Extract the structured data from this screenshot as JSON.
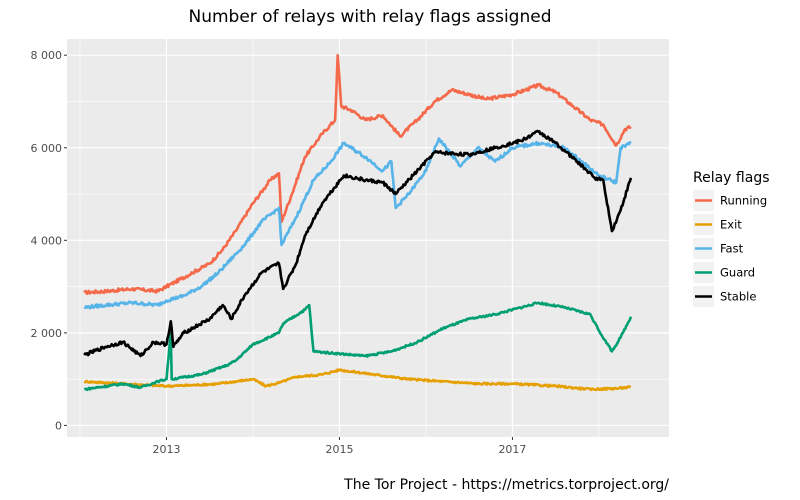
{
  "chart_data": {
    "type": "line",
    "title": "Number of relays with relay flags assigned",
    "xlabel": "",
    "ylabel": "",
    "caption": "The Tor Project - https://metrics.torproject.org/",
    "xlim": [
      2011.85,
      2018.81
    ],
    "ylim": [
      -250,
      8350
    ],
    "x_ticks": [
      {
        "value": 2013,
        "label": "2013"
      },
      {
        "value": 2015,
        "label": "2015"
      },
      {
        "value": 2017,
        "label": "2017"
      }
    ],
    "x_minor": [
      2012,
      2014,
      2016,
      2018
    ],
    "y_ticks": [
      {
        "value": 0,
        "label": "0"
      },
      {
        "value": 2000,
        "label": "2 000"
      },
      {
        "value": 4000,
        "label": "4 000"
      },
      {
        "value": 6000,
        "label": "6 000"
      },
      {
        "value": 8000,
        "label": "8 000"
      }
    ],
    "y_minor": [
      1000,
      3000,
      5000,
      7000
    ],
    "grid": true,
    "legend": {
      "title": "Relay flags",
      "position": "right"
    },
    "series": [
      {
        "name": "Running",
        "color": "#f4694a",
        "points": [
          [
            2012.05,
            2870
          ],
          [
            2012.3,
            2900
          ],
          [
            2012.6,
            2950
          ],
          [
            2012.9,
            2900
          ],
          [
            2013.0,
            3000
          ],
          [
            2013.1,
            3100
          ],
          [
            2013.3,
            3300
          ],
          [
            2013.5,
            3500
          ],
          [
            2013.65,
            3800
          ],
          [
            2013.8,
            4200
          ],
          [
            2014.0,
            4800
          ],
          [
            2014.2,
            5300
          ],
          [
            2014.3,
            5450
          ],
          [
            2014.33,
            4400
          ],
          [
            2014.45,
            5000
          ],
          [
            2014.6,
            5800
          ],
          [
            2014.8,
            6300
          ],
          [
            2014.95,
            6600
          ],
          [
            2014.98,
            8000
          ],
          [
            2015.02,
            6900
          ],
          [
            2015.15,
            6800
          ],
          [
            2015.3,
            6600
          ],
          [
            2015.5,
            6700
          ],
          [
            2015.7,
            6250
          ],
          [
            2015.9,
            6600
          ],
          [
            2016.1,
            7000
          ],
          [
            2016.3,
            7250
          ],
          [
            2016.5,
            7150
          ],
          [
            2016.7,
            7050
          ],
          [
            2017.0,
            7150
          ],
          [
            2017.3,
            7350
          ],
          [
            2017.5,
            7200
          ],
          [
            2017.7,
            6900
          ],
          [
            2017.9,
            6600
          ],
          [
            2018.05,
            6500
          ],
          [
            2018.2,
            6050
          ],
          [
            2018.3,
            6400
          ],
          [
            2018.37,
            6450
          ]
        ]
      },
      {
        "name": "Exit",
        "color": "#e69f00",
        "points": [
          [
            2012.05,
            950
          ],
          [
            2012.5,
            900
          ],
          [
            2013.0,
            850
          ],
          [
            2013.3,
            870
          ],
          [
            2013.6,
            900
          ],
          [
            2014.0,
            1000
          ],
          [
            2014.15,
            850
          ],
          [
            2014.3,
            920
          ],
          [
            2014.5,
            1050
          ],
          [
            2014.8,
            1100
          ],
          [
            2015.0,
            1200
          ],
          [
            2015.2,
            1150
          ],
          [
            2015.4,
            1100
          ],
          [
            2015.8,
            1000
          ],
          [
            2016.2,
            950
          ],
          [
            2016.6,
            900
          ],
          [
            2017.0,
            900
          ],
          [
            2017.5,
            850
          ],
          [
            2017.9,
            780
          ],
          [
            2018.2,
            800
          ],
          [
            2018.37,
            830
          ]
        ]
      },
      {
        "name": "Fast",
        "color": "#56b4e9",
        "points": [
          [
            2012.05,
            2550
          ],
          [
            2012.3,
            2600
          ],
          [
            2012.6,
            2650
          ],
          [
            2012.9,
            2600
          ],
          [
            2013.0,
            2700
          ],
          [
            2013.2,
            2800
          ],
          [
            2013.4,
            3000
          ],
          [
            2013.6,
            3300
          ],
          [
            2013.9,
            3900
          ],
          [
            2014.1,
            4400
          ],
          [
            2014.3,
            4700
          ],
          [
            2014.33,
            3900
          ],
          [
            2014.5,
            4500
          ],
          [
            2014.7,
            5300
          ],
          [
            2014.9,
            5700
          ],
          [
            2015.05,
            6100
          ],
          [
            2015.3,
            5800
          ],
          [
            2015.5,
            5500
          ],
          [
            2015.6,
            5700
          ],
          [
            2015.65,
            4700
          ],
          [
            2015.8,
            5000
          ],
          [
            2016.0,
            5500
          ],
          [
            2016.15,
            6200
          ],
          [
            2016.4,
            5600
          ],
          [
            2016.6,
            6000
          ],
          [
            2016.8,
            5700
          ],
          [
            2017.0,
            6000
          ],
          [
            2017.3,
            6100
          ],
          [
            2017.6,
            6000
          ],
          [
            2017.8,
            5700
          ],
          [
            2018.0,
            5400
          ],
          [
            2018.2,
            5250
          ],
          [
            2018.25,
            6000
          ],
          [
            2018.37,
            6100
          ]
        ]
      },
      {
        "name": "Guard",
        "color": "#009e73",
        "points": [
          [
            2012.05,
            780
          ],
          [
            2012.5,
            900
          ],
          [
            2012.7,
            820
          ],
          [
            2012.9,
            950
          ],
          [
            2013.0,
            1000
          ],
          [
            2013.05,
            2000
          ],
          [
            2013.06,
            1000
          ],
          [
            2013.4,
            1100
          ],
          [
            2013.7,
            1300
          ],
          [
            2013.8,
            1400
          ],
          [
            2014.0,
            1750
          ],
          [
            2014.3,
            2000
          ],
          [
            2014.35,
            2200
          ],
          [
            2014.6,
            2500
          ],
          [
            2014.65,
            2600
          ],
          [
            2014.7,
            1600
          ],
          [
            2015.0,
            1550
          ],
          [
            2015.3,
            1500
          ],
          [
            2015.6,
            1600
          ],
          [
            2015.9,
            1800
          ],
          [
            2016.2,
            2100
          ],
          [
            2016.5,
            2300
          ],
          [
            2016.8,
            2400
          ],
          [
            2017.0,
            2500
          ],
          [
            2017.3,
            2650
          ],
          [
            2017.6,
            2550
          ],
          [
            2017.9,
            2400
          ],
          [
            2018.0,
            2050
          ],
          [
            2018.15,
            1600
          ],
          [
            2018.25,
            1900
          ],
          [
            2018.37,
            2350
          ]
        ]
      },
      {
        "name": "Stable",
        "color": "#000000",
        "points": [
          [
            2012.05,
            1520
          ],
          [
            2012.3,
            1700
          ],
          [
            2012.5,
            1800
          ],
          [
            2012.7,
            1500
          ],
          [
            2012.85,
            1800
          ],
          [
            2013.0,
            1750
          ],
          [
            2013.05,
            2250
          ],
          [
            2013.08,
            1700
          ],
          [
            2013.2,
            2000
          ],
          [
            2013.5,
            2300
          ],
          [
            2013.65,
            2600
          ],
          [
            2013.75,
            2300
          ],
          [
            2013.9,
            2800
          ],
          [
            2014.1,
            3300
          ],
          [
            2014.3,
            3500
          ],
          [
            2014.35,
            2950
          ],
          [
            2014.5,
            3500
          ],
          [
            2014.6,
            4100
          ],
          [
            2014.8,
            4800
          ],
          [
            2015.05,
            5400
          ],
          [
            2015.3,
            5300
          ],
          [
            2015.5,
            5250
          ],
          [
            2015.65,
            5000
          ],
          [
            2015.85,
            5400
          ],
          [
            2016.1,
            5900
          ],
          [
            2016.5,
            5850
          ],
          [
            2016.8,
            6000
          ],
          [
            2017.1,
            6150
          ],
          [
            2017.3,
            6350
          ],
          [
            2017.5,
            6100
          ],
          [
            2017.75,
            5700
          ],
          [
            2017.95,
            5350
          ],
          [
            2018.05,
            5300
          ],
          [
            2018.15,
            4200
          ],
          [
            2018.25,
            4650
          ],
          [
            2018.37,
            5350
          ]
        ]
      }
    ]
  }
}
